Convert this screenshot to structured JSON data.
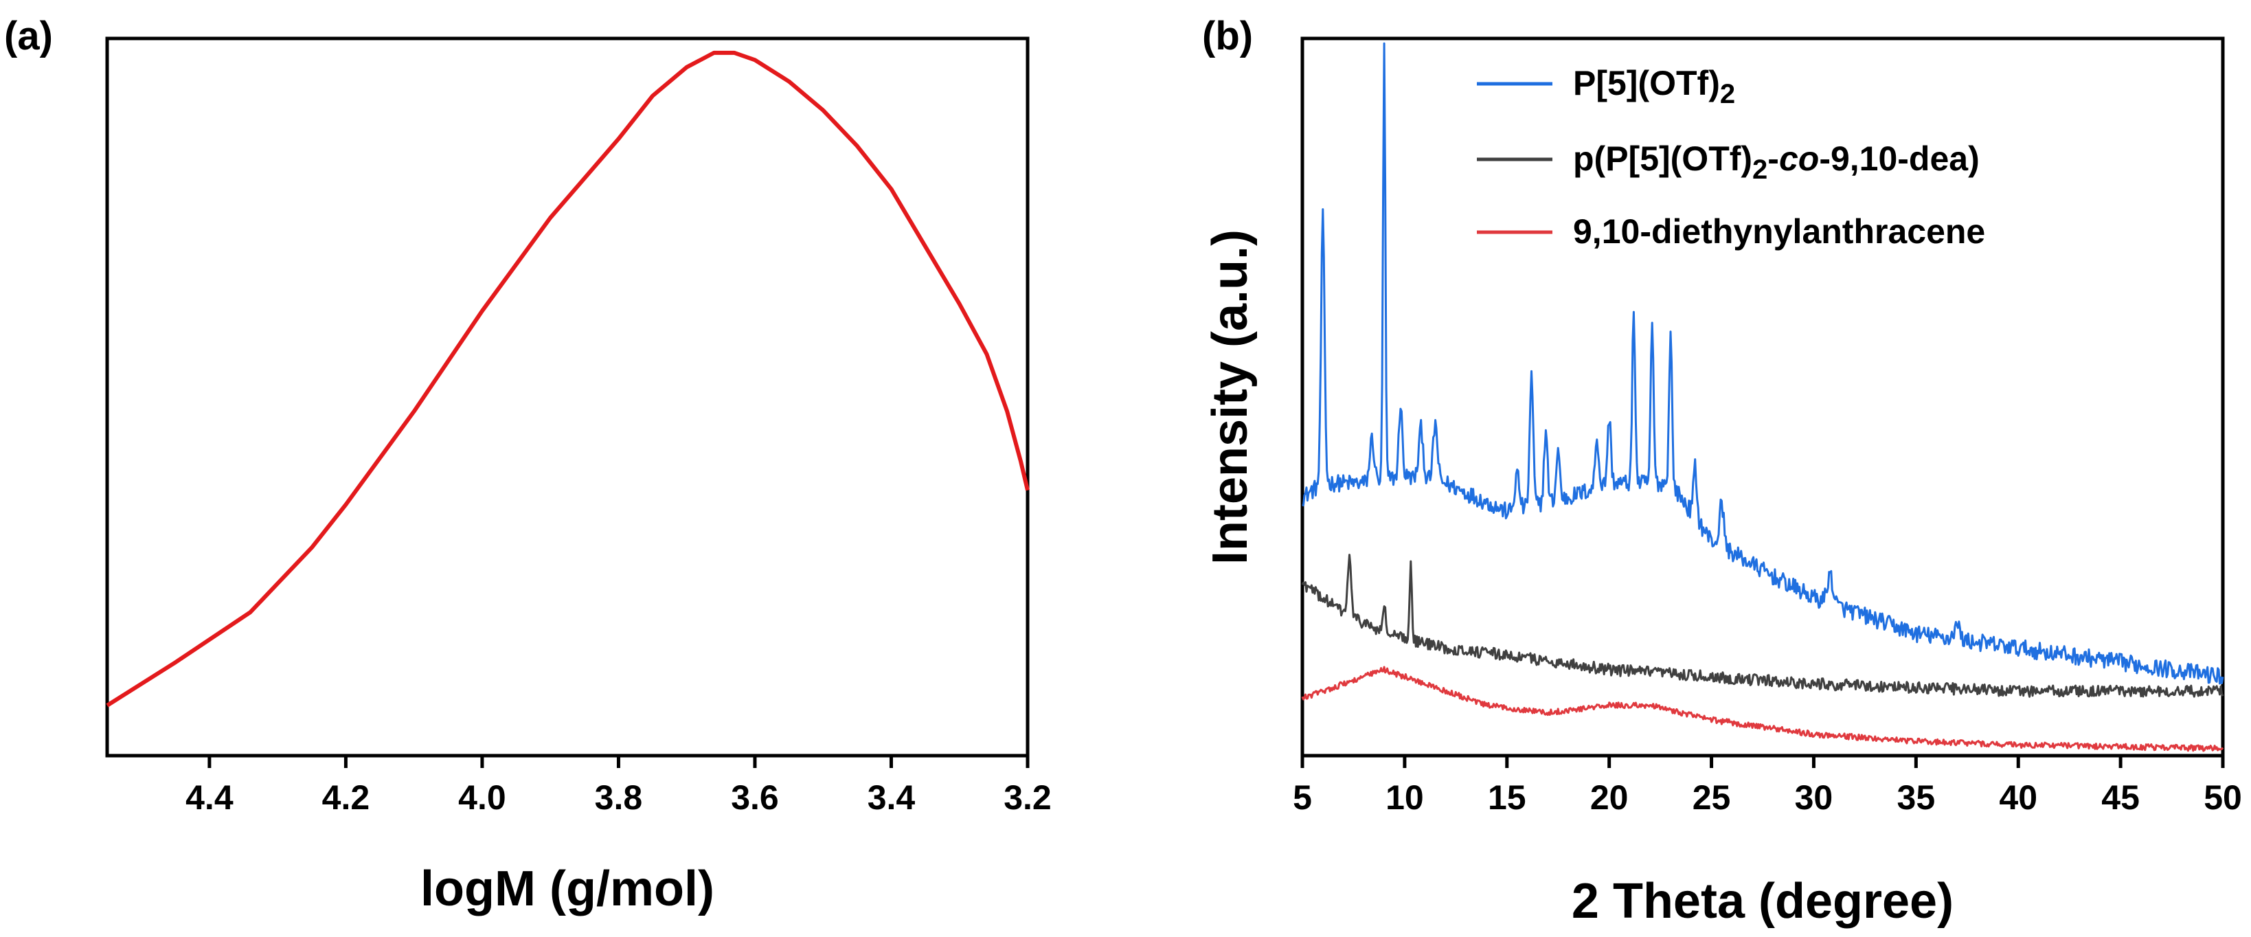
{
  "chart_data": [
    {
      "panel_label": "(a)",
      "type": "line",
      "xlabel": "logM (g/mol)",
      "ylabel": "",
      "x_axis_reversed": true,
      "xlim": [
        4.55,
        3.2
      ],
      "ylim": [
        0,
        1
      ],
      "xticks": [
        4.4,
        4.2,
        4.0,
        3.8,
        3.6,
        3.4,
        3.2
      ],
      "xtick_labels": [
        "4.4",
        "4.2",
        "4.0",
        "3.8",
        "3.6",
        "3.4",
        "3.2"
      ],
      "y_tick_labels_shown": false,
      "grid": false,
      "series": [
        {
          "color": "#e31a1c",
          "points": [
            [
              4.55,
              0.07
            ],
            [
              4.45,
              0.13
            ],
            [
              4.34,
              0.2
            ],
            [
              4.3,
              0.24
            ],
            [
              4.25,
              0.29
            ],
            [
              4.2,
              0.35
            ],
            [
              4.1,
              0.48
            ],
            [
              4.0,
              0.62
            ],
            [
              3.9,
              0.75
            ],
            [
              3.8,
              0.86
            ],
            [
              3.75,
              0.92
            ],
            [
              3.7,
              0.96
            ],
            [
              3.66,
              0.98
            ],
            [
              3.63,
              0.98
            ],
            [
              3.6,
              0.97
            ],
            [
              3.55,
              0.94
            ],
            [
              3.5,
              0.9
            ],
            [
              3.45,
              0.85
            ],
            [
              3.4,
              0.79
            ],
            [
              3.35,
              0.71
            ],
            [
              3.3,
              0.63
            ],
            [
              3.26,
              0.56
            ],
            [
              3.23,
              0.48
            ],
            [
              3.21,
              0.41
            ],
            [
              3.2,
              0.37
            ]
          ]
        }
      ]
    },
    {
      "panel_label": "(b)",
      "type": "line",
      "xlabel": "2 Theta (degree)",
      "ylabel": "Intensity (a.u.)",
      "xlim": [
        5,
        50
      ],
      "ylim": [
        0,
        1
      ],
      "xticks": [
        5,
        10,
        15,
        20,
        25,
        30,
        35,
        40,
        45,
        50
      ],
      "xtick_labels": [
        "5",
        "10",
        "15",
        "20",
        "25",
        "30",
        "35",
        "40",
        "45",
        "50"
      ],
      "y_tick_labels_shown": false,
      "grid": false,
      "legend_position": "top-right",
      "legend": [
        {
          "text": "P[5](OTf)",
          "sub": "2",
          "tail": "",
          "italic": "",
          "tail2": "",
          "color": "#1f6fe0"
        },
        {
          "text": "p(P[5](OTf)",
          "sub": "2",
          "tail": "-",
          "italic": "co",
          "tail2": "-9,10-dea)",
          "color": "#404040"
        },
        {
          "text": "9,10-diethynylanthracene",
          "sub": "",
          "tail": "",
          "italic": "",
          "tail2": "",
          "color": "#e0393e"
        }
      ],
      "series": [
        {
          "legend_index": 0,
          "color": "#1f6fe0",
          "noise": 0.012,
          "baseline": [
            [
              5,
              0.36
            ],
            [
              6,
              0.38
            ],
            [
              8,
              0.38
            ],
            [
              10,
              0.39
            ],
            [
              12,
              0.38
            ],
            [
              15,
              0.34
            ],
            [
              18,
              0.36
            ],
            [
              20,
              0.38
            ],
            [
              23,
              0.38
            ],
            [
              25,
              0.3
            ],
            [
              28,
              0.25
            ],
            [
              30,
              0.22
            ],
            [
              35,
              0.17
            ],
            [
              40,
              0.15
            ],
            [
              45,
              0.13
            ],
            [
              50,
              0.11
            ]
          ],
          "peaks": [
            [
              6.0,
              0.37,
              0.12
            ],
            [
              8.4,
              0.06,
              0.15
            ],
            [
              9.0,
              0.6,
              0.08
            ],
            [
              9.8,
              0.1,
              0.12
            ],
            [
              10.8,
              0.07,
              0.15
            ],
            [
              11.5,
              0.08,
              0.15
            ],
            [
              15.5,
              0.05,
              0.15
            ],
            [
              16.2,
              0.18,
              0.12
            ],
            [
              16.9,
              0.1,
              0.12
            ],
            [
              17.5,
              0.07,
              0.12
            ],
            [
              19.4,
              0.07,
              0.12
            ],
            [
              20.0,
              0.09,
              0.12
            ],
            [
              21.2,
              0.24,
              0.1
            ],
            [
              22.1,
              0.22,
              0.1
            ],
            [
              23.0,
              0.21,
              0.1
            ],
            [
              24.2,
              0.07,
              0.12
            ],
            [
              25.5,
              0.06,
              0.15
            ],
            [
              30.8,
              0.04,
              0.2
            ],
            [
              37.0,
              0.02,
              0.2
            ]
          ]
        },
        {
          "legend_index": 1,
          "color": "#404040",
          "noise": 0.008,
          "baseline": [
            [
              5,
              0.24
            ],
            [
              7,
              0.2
            ],
            [
              9,
              0.17
            ],
            [
              12,
              0.15
            ],
            [
              15,
              0.14
            ],
            [
              20,
              0.12
            ],
            [
              25,
              0.11
            ],
            [
              30,
              0.1
            ],
            [
              40,
              0.09
            ],
            [
              50,
              0.09
            ]
          ],
          "peaks": [
            [
              7.3,
              0.08,
              0.12
            ],
            [
              9.0,
              0.04,
              0.1
            ],
            [
              10.3,
              0.11,
              0.08
            ]
          ]
        },
        {
          "legend_index": 2,
          "color": "#e0393e",
          "noise": 0.004,
          "baseline": [
            [
              5,
              0.08
            ],
            [
              7,
              0.1
            ],
            [
              9,
              0.12
            ],
            [
              11,
              0.1
            ],
            [
              14,
              0.07
            ],
            [
              17,
              0.06
            ],
            [
              20,
              0.07
            ],
            [
              22,
              0.07
            ],
            [
              25,
              0.05
            ],
            [
              30,
              0.03
            ],
            [
              35,
              0.02
            ],
            [
              40,
              0.015
            ],
            [
              50,
              0.01
            ]
          ],
          "peaks": []
        }
      ]
    }
  ]
}
